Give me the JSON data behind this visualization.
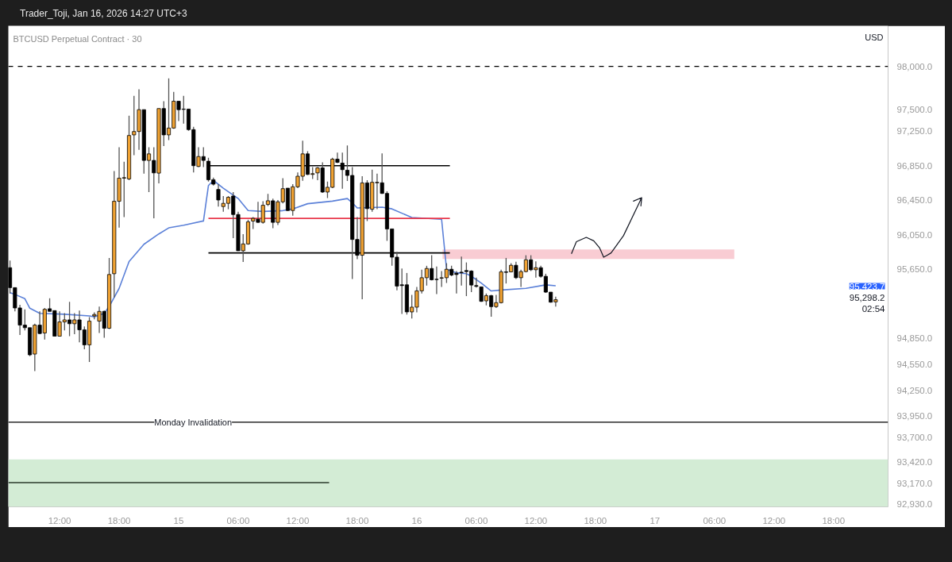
{
  "chart_data": {
    "type": "candlestick",
    "title": "BTCUSD Perpetual Contract · 30",
    "subtitle": "Trader_Toji, Jan 16, 2026 14:27 UTC+3",
    "ylabel": "USD",
    "x": [
      "2026-01-14T07:00",
      "2026-01-14T07:30",
      "2026-01-14T08:00",
      "2026-01-14T08:30",
      "2026-01-14T09:00",
      "2026-01-14T09:30",
      "2026-01-14T10:00",
      "2026-01-14T10:30",
      "2026-01-14T11:00",
      "2026-01-14T11:30",
      "2026-01-14T12:00",
      "2026-01-14T12:30",
      "2026-01-14T13:00",
      "2026-01-14T13:30",
      "2026-01-14T14:00",
      "2026-01-14T14:30",
      "2026-01-14T15:00",
      "2026-01-14T15:30",
      "2026-01-14T16:00",
      "2026-01-14T16:30",
      "2026-01-14T17:00",
      "2026-01-14T17:30",
      "2026-01-14T18:00",
      "2026-01-14T18:30",
      "2026-01-14T19:00",
      "2026-01-14T19:30",
      "2026-01-14T20:00",
      "2026-01-14T20:30",
      "2026-01-14T21:00",
      "2026-01-14T21:30",
      "2026-01-14T22:00",
      "2026-01-14T22:30",
      "2026-01-14T23:00",
      "2026-01-14T23:30",
      "2026-01-15T00:00",
      "2026-01-15T00:30",
      "2026-01-15T01:00",
      "2026-01-15T01:30",
      "2026-01-15T02:00",
      "2026-01-15T02:30",
      "2026-01-15T03:00",
      "2026-01-15T03:30",
      "2026-01-15T04:00",
      "2026-01-15T04:30",
      "2026-01-15T05:00",
      "2026-01-15T05:30",
      "2026-01-15T06:00",
      "2026-01-15T06:30",
      "2026-01-15T07:00",
      "2026-01-15T07:30",
      "2026-01-15T08:00",
      "2026-01-15T08:30",
      "2026-01-15T09:00",
      "2026-01-15T09:30",
      "2026-01-15T10:00",
      "2026-01-15T10:30",
      "2026-01-15T11:00",
      "2026-01-15T11:30",
      "2026-01-15T12:00",
      "2026-01-15T12:30",
      "2026-01-15T13:00",
      "2026-01-15T13:30",
      "2026-01-15T14:00",
      "2026-01-15T14:30",
      "2026-01-15T15:00",
      "2026-01-15T15:30",
      "2026-01-15T16:00",
      "2026-01-15T16:30",
      "2026-01-15T17:00",
      "2026-01-15T17:30",
      "2026-01-15T18:00",
      "2026-01-15T18:30",
      "2026-01-15T19:00",
      "2026-01-15T19:30",
      "2026-01-15T20:00",
      "2026-01-15T20:30",
      "2026-01-15T21:00",
      "2026-01-15T21:30",
      "2026-01-15T22:00",
      "2026-01-15T22:30",
      "2026-01-15T23:00",
      "2026-01-15T23:30",
      "2026-01-16T00:00",
      "2026-01-16T00:30",
      "2026-01-16T01:00",
      "2026-01-16T01:30",
      "2026-01-16T02:00",
      "2026-01-16T02:30",
      "2026-01-16T03:00",
      "2026-01-16T03:30",
      "2026-01-16T04:00",
      "2026-01-16T04:30",
      "2026-01-16T05:00",
      "2026-01-16T05:30",
      "2026-01-16T06:00",
      "2026-01-16T06:30",
      "2026-01-16T07:00",
      "2026-01-16T07:30",
      "2026-01-16T08:00",
      "2026-01-16T08:30",
      "2026-01-16T09:00",
      "2026-01-16T09:30",
      "2026-01-16T10:00",
      "2026-01-16T10:30",
      "2026-01-16T11:00",
      "2026-01-16T11:30",
      "2026-01-16T12:00",
      "2026-01-16T12:30",
      "2026-01-16T13:00",
      "2026-01-16T13:30",
      "2026-01-16T14:00"
    ],
    "ohlc": [
      [
        95669,
        95752,
        95370,
        95438
      ],
      [
        95438,
        95438,
        95163,
        95203
      ],
      [
        95203,
        95239,
        94889,
        95004
      ],
      [
        95004,
        95187,
        94943,
        94974
      ],
      [
        94974,
        94974,
        94645,
        94660
      ],
      [
        94669,
        95020,
        94471,
        95004
      ],
      [
        95004,
        95163,
        94898,
        94907
      ],
      [
        94913,
        95203,
        94837,
        95187
      ],
      [
        95194,
        95316,
        95163,
        95163
      ],
      [
        95172,
        95172,
        94876,
        94876
      ],
      [
        94876,
        95163,
        94876,
        95041
      ],
      [
        95041,
        95142,
        94943,
        95065
      ],
      [
        95065,
        95273,
        94876,
        95020
      ],
      [
        95020,
        95142,
        94898,
        95065
      ],
      [
        95065,
        95172,
        94806,
        94950
      ],
      [
        94950,
        94989,
        94724,
        94776
      ],
      [
        94776,
        95096,
        94577,
        95050
      ],
      [
        95111,
        95151,
        95072,
        95127
      ],
      [
        95050,
        95218,
        94913,
        95163
      ],
      [
        95163,
        95172,
        94858,
        94968
      ],
      [
        94968,
        95782,
        94959,
        95590
      ],
      [
        95599,
        96789,
        95325,
        96438
      ],
      [
        96438,
        97063,
        96133,
        96706
      ],
      [
        96706,
        96895,
        96255,
        96712
      ],
      [
        96697,
        97429,
        96682,
        97200
      ],
      [
        97207,
        97658,
        96972,
        97246
      ],
      [
        97246,
        97734,
        97033,
        97499
      ],
      [
        97499,
        97499,
        96758,
        96911
      ],
      [
        96911,
        97063,
        96545,
        96987
      ],
      [
        96911,
        97063,
        96240,
        96767
      ],
      [
        96764,
        97512,
        96645,
        97512
      ],
      [
        97512,
        97597,
        97078,
        97207
      ],
      [
        97207,
        97862,
        97146,
        97286
      ],
      [
        97286,
        97704,
        97277,
        97597
      ],
      [
        97597,
        97597,
        97368,
        97499
      ],
      [
        97506,
        97658,
        97338,
        97502
      ],
      [
        97506,
        97506,
        97255,
        97268
      ],
      [
        97268,
        97300,
        96773,
        96850
      ],
      [
        96841,
        97063,
        96835,
        96956
      ],
      [
        96956,
        97063,
        96835,
        96911
      ],
      [
        96902,
        96941,
        96667,
        96688
      ],
      [
        96688,
        96712,
        96621,
        96636
      ],
      [
        96575,
        96636,
        96377,
        96453
      ],
      [
        96377,
        96499,
        96316,
        96414
      ],
      [
        96414,
        96499,
        96346,
        96484
      ],
      [
        96499,
        96545,
        96011,
        96285
      ],
      [
        96285,
        96316,
        95865,
        95865
      ],
      [
        95865,
        96057,
        95736,
        95944
      ],
      [
        95944,
        96224,
        95935,
        96200
      ],
      [
        96209,
        96255,
        96118,
        96240
      ],
      [
        96231,
        96432,
        96188,
        96194
      ],
      [
        96194,
        96438,
        96179,
        96392
      ],
      [
        96401,
        96523,
        96383,
        96444
      ],
      [
        96444,
        96468,
        96127,
        96194
      ],
      [
        96194,
        96453,
        96163,
        96432
      ],
      [
        96432,
        96706,
        96414,
        96584
      ],
      [
        96590,
        96590,
        96325,
        96331
      ],
      [
        96331,
        96636,
        96270,
        96606
      ],
      [
        96606,
        96773,
        96590,
        96728
      ],
      [
        96728,
        97139,
        96676,
        96987
      ],
      [
        96987,
        97017,
        96743,
        96749
      ],
      [
        96749,
        96834,
        96697,
        96758
      ],
      [
        96767,
        96834,
        96682,
        96825
      ],
      [
        96825,
        96889,
        96536,
        96545
      ],
      [
        96545,
        96667,
        96475,
        96600
      ],
      [
        96600,
        96941,
        96590,
        96926
      ],
      [
        96926,
        97002,
        96880,
        96889
      ],
      [
        96880,
        97002,
        96584,
        96804
      ],
      [
        96798,
        97085,
        96673,
        96737
      ],
      [
        96737,
        96834,
        95538,
        95996
      ],
      [
        95996,
        96255,
        95767,
        95813
      ],
      [
        95813,
        96728,
        95303,
        96651
      ],
      [
        96651,
        96682,
        96209,
        96353
      ],
      [
        96346,
        96804,
        96316,
        96658
      ],
      [
        96652,
        96758,
        96346,
        96658
      ],
      [
        96652,
        96993,
        96523,
        96529
      ],
      [
        96529,
        96554,
        95980,
        96118
      ],
      [
        96118,
        96118,
        95691,
        95791
      ],
      [
        95791,
        95852,
        95407,
        95456
      ],
      [
        95471,
        95660,
        95133,
        95462
      ],
      [
        95471,
        95608,
        95126,
        95157
      ],
      [
        95157,
        95355,
        95081,
        95212
      ],
      [
        95212,
        95447,
        95151,
        95401
      ],
      [
        95401,
        95645,
        95370,
        95553
      ],
      [
        95553,
        95691,
        95462,
        95660
      ],
      [
        95660,
        95813,
        95523,
        95529
      ],
      [
        95535,
        95682,
        95364,
        95532
      ],
      [
        95547,
        95630,
        95447,
        95553
      ],
      [
        95553,
        95721,
        95492,
        95651
      ],
      [
        95651,
        95691,
        95569,
        95584
      ],
      [
        95605,
        95630,
        95370,
        95590
      ],
      [
        95617,
        95797,
        95462,
        95611
      ],
      [
        95636,
        95730,
        95340,
        95624
      ],
      [
        95630,
        95639,
        95386,
        95468
      ],
      [
        95462,
        95553,
        95438,
        95453
      ],
      [
        95447,
        95447,
        95273,
        95279
      ],
      [
        95285,
        95370,
        95233,
        95346
      ],
      [
        95346,
        95355,
        95102,
        95218
      ],
      [
        95218,
        95355,
        95203,
        95264
      ],
      [
        95264,
        95645,
        95255,
        95621
      ],
      [
        95621,
        95782,
        95486,
        95615
      ],
      [
        95621,
        95721,
        95615,
        95697
      ],
      [
        95697,
        95737,
        95538,
        95553
      ],
      [
        95553,
        95645,
        95447,
        95624
      ],
      [
        95624,
        95813,
        95615,
        95761
      ],
      [
        95761,
        95813,
        95630,
        95645
      ],
      [
        95645,
        95743,
        95553,
        95669
      ],
      [
        95669,
        95691,
        95553,
        95569
      ],
      [
        95569,
        95599,
        95377,
        95386
      ],
      [
        95386,
        95386,
        95264,
        95270
      ],
      [
        95273,
        95334,
        95218,
        95298.2
      ]
    ],
    "colors": [
      "#000000",
      "#000000",
      "#000000",
      "#000000",
      "#000000",
      "#f0a232",
      "#000000",
      "#f0a232",
      "#000000",
      "#000000",
      "#f0a232",
      "#f0a232",
      "#000000",
      "#f0a232",
      "#000000",
      "#000000",
      "#f0a232",
      "#f0a232",
      "#f0a232",
      "#000000",
      "#f0a232",
      "#f0a232",
      "#f0a232",
      "#f0a232",
      "#f0a232",
      "#f0a232",
      "#f0a232",
      "#000000",
      "#f0a232",
      "#000000",
      "#f0a232",
      "#000000",
      "#f0a232",
      "#f0a232",
      "#000000",
      "#000000",
      "#000000",
      "#000000",
      "#f0a232",
      "#000000",
      "#000000",
      "#000000",
      "#000000",
      "#f0a232",
      "#f0a232",
      "#000000",
      "#000000",
      "#f0a232",
      "#f0a232",
      "#f0a232",
      "#000000",
      "#f0a232",
      "#f0a232",
      "#000000",
      "#f0a232",
      "#f0a232",
      "#000000",
      "#f0a232",
      "#f0a232",
      "#f0a232",
      "#000000",
      "#f0a232",
      "#f0a232",
      "#000000",
      "#f0a232",
      "#f0a232",
      "#000000",
      "#000000",
      "#000000",
      "#000000",
      "#000000",
      "#f0a232",
      "#000000",
      "#f0a232",
      "#f0a232",
      "#000000",
      "#000000",
      "#000000",
      "#000000",
      "#000000",
      "#000000",
      "#f0a232",
      "#f0a232",
      "#f0a232",
      "#f0a232",
      "#000000",
      "#000000",
      "#f0a232",
      "#f0a232",
      "#000000",
      "#000000",
      "#000000",
      "#000000",
      "#000000",
      "#000000",
      "#000000",
      "#f0a232",
      "#000000",
      "#f0a232",
      "#f0a232",
      "#000000",
      "#f0a232",
      "#000000",
      "#f0a232",
      "#f0a232",
      "#000000",
      "#f0a232",
      "#000000",
      "#000000",
      "#000000",
      "#f0a232"
    ],
    "series": [
      {
        "type": "area",
        "color": "#f9ccd3",
        "x": [
          "2026-01-16T02:36",
          "2026-01-17T08:00"
        ],
        "values": [
          null,
          null
        ],
        "lower": [
          95770,
          95770
        ],
        "upper": [
          95880,
          95880
        ]
      },
      {
        "type": "line",
        "color": "#5b80d8",
        "x": [
          "2026-01-14T07:00",
          "2026-01-14T07:30",
          "2026-01-14T08:30",
          "2026-01-14T09:00",
          "2026-01-14T10:00",
          "2026-01-14T12:30",
          "2026-01-14T15:00",
          "2026-01-14T15:30",
          "2026-01-14T16:30",
          "2026-01-14T17:00",
          "2026-01-14T18:00",
          "2026-01-14T19:00",
          "2026-01-14T20:30",
          "2026-01-14T22:00",
          "2026-01-14T23:00",
          "2026-01-15T00:30",
          "2026-01-15T02:30",
          "2026-01-15T03:00",
          "2026-01-15T03:30",
          "2026-01-15T04:30",
          "2026-01-15T06:00",
          "2026-01-15T07:00",
          "2026-01-15T08:30",
          "2026-01-15T10:30",
          "2026-01-15T11:30",
          "2026-01-15T13:00",
          "2026-01-15T15:30",
          "2026-01-15T17:00",
          "2026-01-15T17:30",
          "2026-01-15T18:00",
          "2026-01-15T20:30",
          "2026-01-15T21:30",
          "2026-01-15T23:30",
          "2026-01-16T02:30",
          "2026-01-16T03:00",
          "2026-01-16T04:00",
          "2026-01-16T05:00",
          "2026-01-16T05:30",
          "2026-01-16T06:30",
          "2026-01-16T07:30",
          "2026-01-16T08:30",
          "2026-01-16T11:00",
          "2026-01-16T13:00",
          "2026-01-16T14:00"
        ],
        "values": [
          95380,
          95360,
          95310,
          95200,
          95140,
          95130,
          95110,
          95100,
          95140,
          95220,
          95430,
          95740,
          95940,
          96060,
          96130,
          96160,
          96210,
          96620,
          96680,
          96590,
          96470,
          96330,
          96320,
          96330,
          96350,
          96410,
          96440,
          96470,
          96420,
          96360,
          96370,
          96350,
          96250,
          96230,
          95650,
          95610,
          95600,
          95570,
          95490,
          95400,
          95410,
          95430,
          95470,
          95460
        ]
      },
      {
        "type": "line",
        "color": "#000000",
        "x": [
          "2026-01-15T03:00",
          "2026-01-16T03:20"
        ],
        "values": [
          96850,
          96850
        ]
      },
      {
        "type": "line",
        "color": "#e8374b",
        "x": [
          "2026-01-15T03:00",
          "2026-01-16T03:20"
        ],
        "values": [
          96240,
          96240
        ]
      },
      {
        "type": "line",
        "color": "#000000",
        "x": [
          "2026-01-15T03:00",
          "2026-01-16T03:20"
        ],
        "values": [
          95840,
          95840
        ]
      },
      {
        "type": "line",
        "color": "#2a3a2a",
        "x": [
          "2026-01-14T06:50",
          "2026-01-15T15:10"
        ],
        "values": [
          93180,
          93180
        ]
      },
      {
        "type": "line",
        "color": "#131722",
        "x": [
          "2026-01-16T15:35",
          "2026-01-16T16:05",
          "2026-01-16T17:05",
          "2026-01-16T17:50",
          "2026-01-16T18:25",
          "2026-01-16T18:50",
          "2026-01-16T19:35",
          "2026-01-16T20:50",
          "2026-01-16T22:40",
          "2026-01-16T21:50",
          "2026-01-16T22:40",
          "2026-01-16T22:35"
        ],
        "values": [
          95830,
          95970,
          96020,
          95980,
          95900,
          95790,
          95840,
          96040,
          96480,
          96440,
          96480,
          96380
        ]
      }
    ],
    "ref_lines": [
      {
        "axis": "y",
        "value": 98000,
        "color": "#000000",
        "line_style": "dashed"
      },
      {
        "axis": "y",
        "value": 93880,
        "color": "#000000",
        "label": "Monday Invalidation"
      }
    ],
    "bands": [
      {
        "axis": "y",
        "from": 92900,
        "to": 93450,
        "color": "#d3ecd5"
      }
    ],
    "annotations": [
      "95,423.7",
      "95,298.2",
      "02:54"
    ],
    "xlim": [
      "2026-01-14T06:50",
      "2026-01-17T23:30"
    ],
    "ylim": [
      92900,
      98470
    ],
    "xticks": [
      {
        "value": "2026-01-14T12:00",
        "label": "12:00"
      },
      {
        "value": "2026-01-14T18:00",
        "label": "18:00"
      },
      {
        "value": "2026-01-15",
        "label": "15"
      },
      {
        "value": "2026-01-15T06:00",
        "label": "06:00"
      },
      {
        "value": "2026-01-15T12:00",
        "label": "12:00"
      },
      {
        "value": "2026-01-15T18:00",
        "label": "18:00"
      },
      {
        "value": "2026-01-16",
        "label": "16"
      },
      {
        "value": "2026-01-16T06:00",
        "label": "06:00"
      },
      {
        "value": "2026-01-16T12:00",
        "label": "12:00"
      },
      {
        "value": "2026-01-16T18:00",
        "label": "18:00"
      },
      {
        "value": "2026-01-17",
        "label": "17"
      },
      {
        "value": "2026-01-17T06:00",
        "label": "06:00"
      },
      {
        "value": "2026-01-17T12:00",
        "label": "12:00"
      },
      {
        "value": "2026-01-17T18:00",
        "label": "18:00"
      }
    ],
    "yticks": [
      {
        "value": 98000,
        "label": "98,000.0"
      },
      {
        "value": 97500,
        "label": "97,500.0"
      },
      {
        "value": 97250,
        "label": "97,250.0"
      },
      {
        "value": 96850,
        "label": "96,850.0"
      },
      {
        "value": 96450,
        "label": "96,450.0"
      },
      {
        "value": 96050,
        "label": "96,050.0"
      },
      {
        "value": 95650,
        "label": "95,650.0"
      },
      {
        "value": 94850,
        "label": "94,850.0"
      },
      {
        "value": 94550,
        "label": "94,550.0"
      },
      {
        "value": 94250,
        "label": "94,250.0"
      },
      {
        "value": 93950,
        "label": "93,950.0"
      },
      {
        "value": 93700,
        "label": "93,700.0"
      },
      {
        "value": 93420,
        "label": "93,420.0"
      },
      {
        "value": 93170,
        "label": "93,170.0"
      },
      {
        "value": 92930,
        "label": "92,930.0"
      }
    ],
    "grid": false
  }
}
